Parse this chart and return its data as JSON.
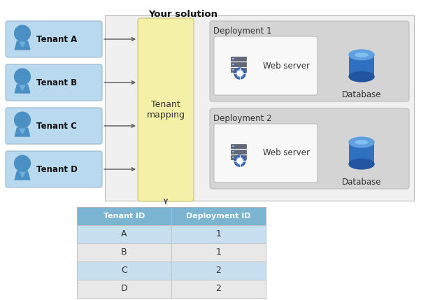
{
  "title": "Your solution",
  "tenants": [
    "Tenant A",
    "Tenant B",
    "Tenant C",
    "Tenant D"
  ],
  "tenant_box_color": "#b8d9ee",
  "tenant_box_edge": "#9ab8cc",
  "mapping_box_color": "#f5f0a8",
  "mapping_box_edge": "#c8c070",
  "mapping_label": "Tenant\nmapping",
  "solution_box_color": "#f0f0f0",
  "solution_box_edge": "#bbbbbb",
  "deployment_labels": [
    "Deployment 1",
    "Deployment 2"
  ],
  "deploy_box_color": "#d4d4d4",
  "deploy_box_edge": "#bbbbbb",
  "webserver_box_color": "#f8f8f8",
  "webserver_box_edge": "#bbbbbb",
  "table_header_color": "#7ab4d0",
  "table_row_colors": [
    "#c8dff0",
    "#e8e8e8",
    "#c8dff0",
    "#e8e8e8"
  ],
  "table_border_color": "#bbbbbb",
  "table_bg_color": "#f5f5f5",
  "tenant_ids": [
    "A",
    "B",
    "C",
    "D"
  ],
  "deployment_ids": [
    "1",
    "1",
    "2",
    "2"
  ],
  "arrow_color": "#555555",
  "person_color": "#4a90c4",
  "person_color_light": "#6ab0d8",
  "db_color_dark": "#2255a0",
  "db_color_mid": "#3070c0",
  "db_color_light": "#60a0e0",
  "db_color_top": "#80c0f0",
  "server_color_dark": "#555566",
  "server_color_light": "#8888aa",
  "bg_color": "#ffffff"
}
